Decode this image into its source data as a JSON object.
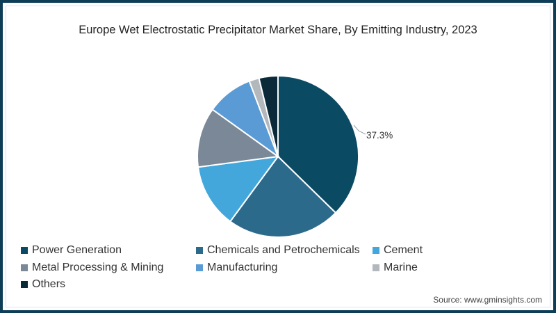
{
  "title": "Europe Wet Electrostatic Precipitator Market Share, By Emitting Industry, 2023",
  "source": "Source: www.gminsights.com",
  "colors": {
    "border": "#0d3d57"
  },
  "chart_data": {
    "type": "pie",
    "title": "Europe Wet Electrostatic Precipitator Market Share, By Emitting Industry, 2023",
    "categories": [
      "Power Generation",
      "Chemicals and Petrochemicals",
      "Cement",
      "Metal Processing & Mining",
      "Manufacturing",
      "Marine",
      "Others"
    ],
    "values": [
      37.3,
      22.8,
      12.8,
      12.0,
      9.3,
      2.0,
      3.8
    ],
    "colors": [
      "#0b4a63",
      "#2c6a8c",
      "#44a7dc",
      "#7a8898",
      "#5b9bd5",
      "#b3b8bd",
      "#0a2a3a"
    ],
    "labels_shown": {
      "Power Generation": "37.3%"
    },
    "start_angle_deg": 0,
    "direction": "clockwise",
    "legend_position": "bottom"
  },
  "legend": [
    {
      "label": "Power Generation",
      "color": "#0b4a63"
    },
    {
      "label": "Chemicals and Petrochemicals",
      "color": "#2c6a8c"
    },
    {
      "label": "Cement",
      "color": "#44a7dc"
    },
    {
      "label": "Metal Processing & Mining",
      "color": "#7a8898"
    },
    {
      "label": "Manufacturing",
      "color": "#5b9bd5"
    },
    {
      "label": "Marine",
      "color": "#b3b8bd"
    },
    {
      "label": "Others",
      "color": "#0a2a3a"
    }
  ],
  "annotation": "37.3%"
}
